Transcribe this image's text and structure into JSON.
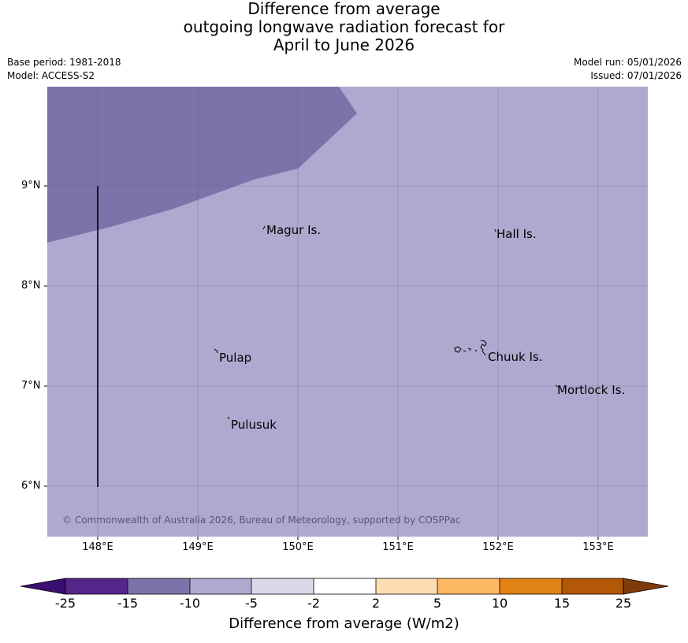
{
  "title": {
    "line1": "Difference from average",
    "line2": "outgoing longwave radiation forecast for",
    "line3": "April to June 2026"
  },
  "meta_left": {
    "base_period": "Base period: 1981-2018",
    "model": "Model: ACCESS-S2"
  },
  "meta_right": {
    "model_run": "Model run: 05/01/2026",
    "issued": "Issued: 07/01/2026"
  },
  "map": {
    "lat_ticks": [
      "9°N",
      "8°N",
      "7°N",
      "6°N"
    ],
    "lon_ticks": [
      "148°E",
      "149°E",
      "150°E",
      "151°E",
      "152°E",
      "153°E"
    ],
    "places": [
      "Magur Is.",
      "Hall Is.",
      "Pulap",
      "Chuuk Is.",
      "Mortlock Is.",
      "Pulusuk"
    ],
    "copyright": "© Commonwealth of Australia 2026, Bureau of Meteorology, supported by COSPPac",
    "region_colors": {
      "minus15_to_minus10": "#7e72ab",
      "minus10_to_minus5": "#afa9cf"
    }
  },
  "colorbar": {
    "title": "Difference from average (W/m2)",
    "labels": [
      "-25",
      "-15",
      "-10",
      "-5",
      "-2",
      "2",
      "5",
      "10",
      "15",
      "25"
    ],
    "colors": [
      "#3b0f6f",
      "#54268a",
      "#7e72ab",
      "#afa9cf",
      "#d9d9ea",
      "#ffffff",
      "#fddeb3",
      "#fdb863",
      "#e08214",
      "#b35806",
      "#7f3b08"
    ]
  }
}
